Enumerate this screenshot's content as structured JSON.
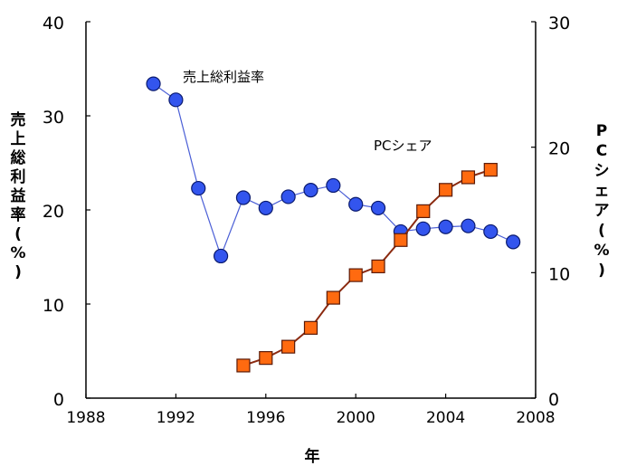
{
  "chart_data": {
    "type": "line",
    "xlabel": "年",
    "ylabel": "売上総利益率(%)",
    "y2label": "PCシェア(%)",
    "xlim": [
      1988,
      2008
    ],
    "ylim": [
      0,
      40
    ],
    "y2lim": [
      0,
      30
    ],
    "xticks": [
      1988,
      1992,
      1996,
      2000,
      2004,
      2008
    ],
    "yticks": [
      0,
      10,
      20,
      30,
      40
    ],
    "y2ticks": [
      0,
      10,
      20,
      30
    ],
    "grid": false,
    "annotations": [
      "売上総利益率",
      "PCシェア"
    ],
    "series": [
      {
        "name": "売上総利益率",
        "axis": "left",
        "marker": "circle",
        "color": "#3355ee",
        "line_color": "#4b5fd6",
        "x": [
          1991,
          1992,
          1993,
          1994,
          1995,
          1996,
          1997,
          1998,
          1999,
          2000,
          2001,
          2002,
          2003,
          2004,
          2005,
          2006,
          2007
        ],
        "y": [
          33.4,
          31.7,
          22.3,
          15.1,
          21.3,
          20.2,
          21.4,
          22.1,
          22.6,
          20.6,
          20.2,
          17.7,
          18.0,
          18.2,
          18.3,
          17.7,
          16.6
        ]
      },
      {
        "name": "PCシェア",
        "axis": "right",
        "marker": "square",
        "color": "#ff6a10",
        "line_color": "#8b2a10",
        "x": [
          1995,
          1996,
          1997,
          1998,
          1999,
          2000,
          2001,
          2002,
          2003,
          2004,
          2005,
          2006
        ],
        "y": [
          2.6,
          3.2,
          4.1,
          5.6,
          8.0,
          9.8,
          10.5,
          12.6,
          14.9,
          16.6,
          17.6,
          18.2
        ]
      }
    ]
  }
}
